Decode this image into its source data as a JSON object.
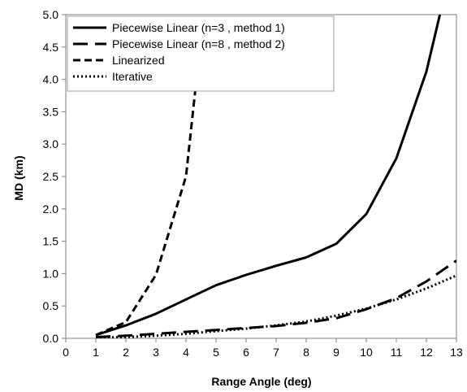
{
  "chart_data": {
    "type": "line",
    "title": "",
    "xlabel": "Range Angle (deg)",
    "ylabel": "MD (km)",
    "xlim": [
      0,
      13
    ],
    "ylim": [
      0,
      5
    ],
    "x_ticks": [
      "0",
      "1",
      "2",
      "3",
      "4",
      "5",
      "6",
      "7",
      "8",
      "9",
      "10",
      "11",
      "12",
      "13"
    ],
    "y_ticks": [
      "0.0",
      "0.5",
      "1.0",
      "1.5",
      "2.0",
      "2.5",
      "3.0",
      "3.5",
      "4.0",
      "4.5",
      "5.0"
    ],
    "grid": false,
    "legend_position": "top-left",
    "series": [
      {
        "name": "Piecewise Linear (n=3 , method 1)",
        "style": "solid",
        "color": "#000000",
        "x": [
          1,
          2,
          3,
          4,
          5,
          6,
          7,
          8,
          9,
          10,
          11,
          12,
          12.45
        ],
        "y": [
          0.05,
          0.2,
          0.38,
          0.6,
          0.82,
          0.98,
          1.12,
          1.25,
          1.46,
          1.92,
          2.78,
          4.12,
          5.0
        ]
      },
      {
        "name": "Piecewise Linear (n=8 , method 2)",
        "style": "longdash",
        "color": "#000000",
        "x": [
          1,
          2,
          3,
          4,
          5,
          6,
          7,
          8,
          9,
          10,
          11,
          12,
          13
        ],
        "y": [
          0.02,
          0.04,
          0.07,
          0.1,
          0.13,
          0.16,
          0.19,
          0.24,
          0.31,
          0.45,
          0.62,
          0.88,
          1.2
        ]
      },
      {
        "name": "Linearized",
        "style": "dash",
        "color": "#000000",
        "x": [
          1,
          2,
          3,
          4,
          4.35
        ],
        "y": [
          0.05,
          0.25,
          0.98,
          2.5,
          4.0
        ]
      },
      {
        "name": "Iterative",
        "style": "dot",
        "color": "#000000",
        "x": [
          1,
          2,
          3,
          4,
          5,
          6,
          7,
          8,
          9,
          10,
          11,
          12,
          13
        ],
        "y": [
          0.01,
          0.02,
          0.04,
          0.07,
          0.11,
          0.15,
          0.2,
          0.26,
          0.35,
          0.46,
          0.6,
          0.77,
          0.97
        ]
      }
    ]
  }
}
